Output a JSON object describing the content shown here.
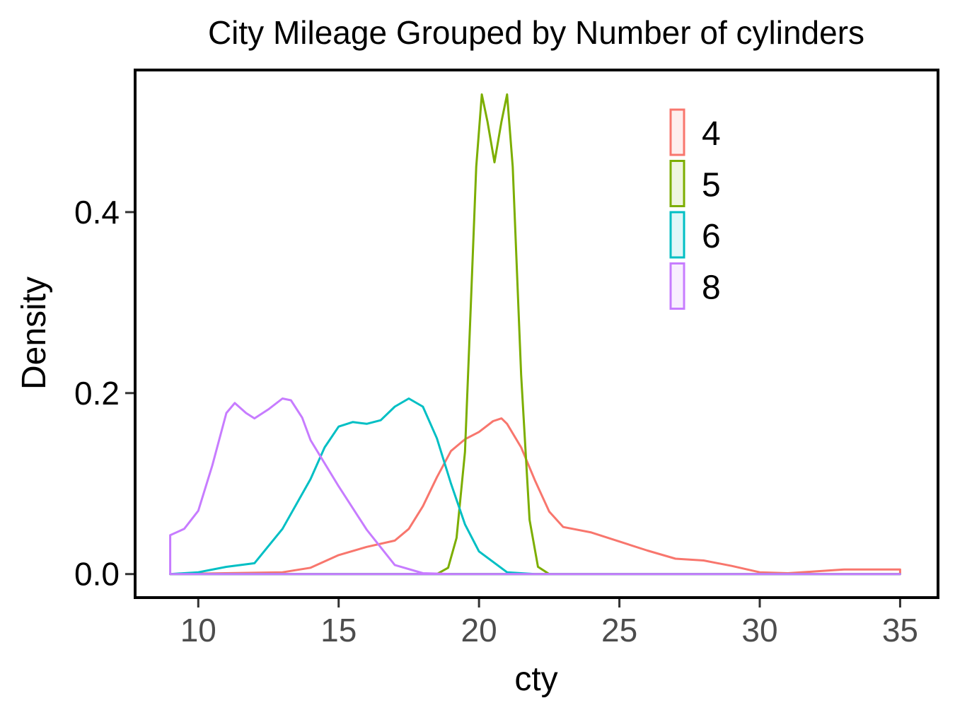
{
  "chart_data": {
    "type": "line",
    "subtype": "density",
    "title": "City Mileage Grouped by Number of cylinders",
    "xlabel": "cty",
    "ylabel": "Density",
    "xlim": [
      7.75,
      36.35
    ],
    "ylim": [
      -0.026,
      0.557
    ],
    "xticks": [
      10,
      15,
      20,
      25,
      30,
      35
    ],
    "xtick_labels": [
      "10",
      "15",
      "20",
      "25",
      "30",
      "35"
    ],
    "yticks": [
      0.0,
      0.2,
      0.4
    ],
    "ytick_labels": [
      "0.0",
      "0.2",
      "0.4"
    ],
    "grid": false,
    "legend": {
      "position": "top-right",
      "entries": [
        "4",
        "5",
        "6",
        "8"
      ]
    },
    "series": [
      {
        "name": "4",
        "color": "#F8766D",
        "x": [
          9,
          13,
          14,
          15,
          16,
          17,
          17.5,
          18,
          18.5,
          19,
          19.5,
          20,
          20.5,
          20.8,
          21,
          21.5,
          22,
          22.5,
          23,
          24,
          25,
          26,
          27,
          28,
          29,
          30,
          31,
          32,
          33,
          34,
          35,
          35,
          9
        ],
        "y": [
          0,
          0.002,
          0.007,
          0.021,
          0.03,
          0.037,
          0.05,
          0.075,
          0.107,
          0.136,
          0.149,
          0.157,
          0.169,
          0.172,
          0.166,
          0.14,
          0.103,
          0.069,
          0.052,
          0.046,
          0.036,
          0.026,
          0.017,
          0.015,
          0.009,
          0.002,
          0.001,
          0.003,
          0.005,
          0.005,
          0.005,
          0,
          0
        ]
      },
      {
        "name": "5",
        "color": "#7CAE00",
        "x": [
          9,
          18.5,
          18.9,
          19.2,
          19.5,
          19.7,
          19.9,
          20.1,
          20.3,
          20.55,
          20.8,
          21,
          21.2,
          21.5,
          21.8,
          22.1,
          22.5,
          35,
          35,
          9
        ],
        "y": [
          0,
          0,
          0.007,
          0.04,
          0.135,
          0.29,
          0.45,
          0.53,
          0.5,
          0.455,
          0.5,
          0.53,
          0.45,
          0.22,
          0.06,
          0.008,
          0,
          0,
          0,
          0
        ]
      },
      {
        "name": "6",
        "color": "#00BFC4",
        "x": [
          9,
          10,
          11,
          12,
          13,
          14,
          14.5,
          15,
          15.5,
          16,
          16.5,
          17,
          17.5,
          18,
          18.5,
          19,
          19.5,
          20,
          21,
          22,
          35,
          35,
          9
        ],
        "y": [
          0,
          0.002,
          0.008,
          0.012,
          0.05,
          0.105,
          0.14,
          0.163,
          0.168,
          0.166,
          0.17,
          0.185,
          0.194,
          0.185,
          0.15,
          0.1,
          0.055,
          0.025,
          0.002,
          0,
          0,
          0,
          0
        ]
      },
      {
        "name": "8",
        "color": "#C77CFF",
        "x": [
          9,
          9,
          9.5,
          10,
          10.5,
          11,
          11.3,
          11.7,
          12,
          12.5,
          13,
          13.3,
          13.7,
          14,
          15,
          16,
          17,
          18,
          19,
          35,
          35,
          9
        ],
        "y": [
          0,
          0.043,
          0.05,
          0.07,
          0.12,
          0.178,
          0.189,
          0.178,
          0.172,
          0.182,
          0.194,
          0.192,
          0.173,
          0.148,
          0.097,
          0.049,
          0.01,
          0.001,
          0,
          0,
          0,
          0
        ]
      }
    ]
  }
}
